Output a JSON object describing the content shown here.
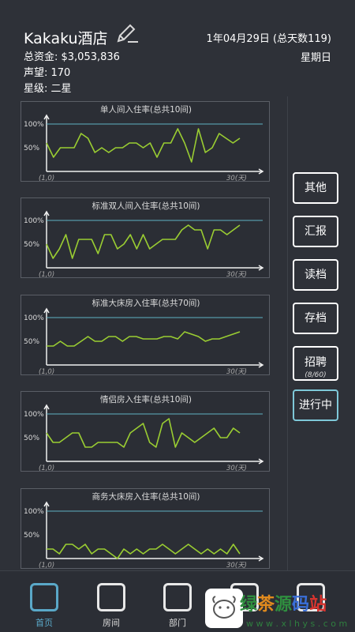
{
  "header": {
    "hotel_name": "Kakaku酒店",
    "date": "1年04月29日 (总天数119)",
    "weekday": "星期日",
    "funds": "总资金: $3,053,836",
    "fame": "声望: 170",
    "star": "星级: 二星"
  },
  "chart_data": [
    {
      "type": "line",
      "title": "单人间入住率(总共10间)",
      "ylim": [
        0,
        100
      ],
      "y_ticks": [
        "100%",
        "50%"
      ],
      "x_start_label": "(1,0)",
      "x_end_label": "30(天)",
      "reference_line": 100,
      "line_color": "#9acd32",
      "reference_color": "#5fb3c4",
      "values": [
        60,
        30,
        50,
        50,
        50,
        80,
        70,
        40,
        50,
        40,
        50,
        50,
        60,
        60,
        50,
        60,
        30,
        60,
        60,
        90,
        60,
        20,
        90,
        40,
        50,
        80,
        70,
        60,
        70
      ]
    },
    {
      "type": "line",
      "title": "标准双人间入住率(总共10间)",
      "ylim": [
        0,
        100
      ],
      "y_ticks": [
        "100%",
        "50%"
      ],
      "x_start_label": "(1,0)",
      "x_end_label": "30(天)",
      "reference_line": 100,
      "line_color": "#9acd32",
      "reference_color": "#5fb3c4",
      "values": [
        50,
        20,
        40,
        70,
        20,
        60,
        60,
        60,
        30,
        70,
        70,
        40,
        50,
        70,
        40,
        70,
        40,
        50,
        60,
        60,
        60,
        80,
        90,
        80,
        80,
        40,
        80,
        80,
        70,
        80,
        90
      ]
    },
    {
      "type": "line",
      "title": "标准大床房入住率(总共70间)",
      "ylim": [
        0,
        100
      ],
      "y_ticks": [
        "100%",
        "50%"
      ],
      "x_start_label": "(1,0)",
      "x_end_label": "30(天)",
      "reference_line": 100,
      "line_color": "#9acd32",
      "reference_color": "#5fb3c4",
      "values": [
        40,
        40,
        50,
        40,
        40,
        50,
        60,
        50,
        50,
        60,
        60,
        50,
        60,
        60,
        55,
        55,
        55,
        60,
        60,
        55,
        70,
        65,
        60,
        50,
        55,
        55,
        60,
        65,
        70
      ]
    },
    {
      "type": "line",
      "title": "情侣房入住率(总共10间)",
      "ylim": [
        0,
        100
      ],
      "y_ticks": [
        "100%",
        "50%"
      ],
      "x_start_label": "(1,0)",
      "x_end_label": "30(天)",
      "reference_line": 100,
      "line_color": "#9acd32",
      "reference_color": "#5fb3c4",
      "values": [
        60,
        40,
        40,
        50,
        60,
        60,
        30,
        30,
        40,
        40,
        40,
        40,
        30,
        60,
        70,
        80,
        40,
        30,
        80,
        90,
        30,
        60,
        50,
        40,
        50,
        60,
        70,
        50,
        50,
        70,
        60
      ]
    },
    {
      "type": "line",
      "title": "商务大床房入住率(总共10间)",
      "ylim": [
        0,
        100
      ],
      "y_ticks": [
        "100%",
        "50%"
      ],
      "x_start_label": "(1,0)",
      "x_end_label": "30(天)",
      "reference_line": 100,
      "line_color": "#9acd32",
      "reference_color": "#5fb3c4",
      "values": [
        20,
        20,
        10,
        30,
        30,
        20,
        30,
        10,
        20,
        20,
        10,
        0,
        20,
        10,
        20,
        10,
        20,
        20,
        30,
        20,
        10,
        20,
        30,
        20,
        10,
        20,
        10,
        20,
        10,
        30,
        10
      ]
    }
  ],
  "side_buttons": {
    "other": "其他",
    "report": "汇报",
    "load": "读档",
    "save": "存档",
    "hire": "招聘",
    "hire_count": "(8/60)",
    "running": "进行中"
  },
  "bottom_tabs": {
    "home": "首页",
    "rooms": "房间",
    "departments": "部门"
  },
  "watermark": {
    "title": "绿茶源码站",
    "url": "w w w . x l h y s . c o m"
  },
  "colors": {
    "background": "#2e3138",
    "accent": "#5aa8c8",
    "line": "#9acd32",
    "reference": "#5fb3c4"
  }
}
